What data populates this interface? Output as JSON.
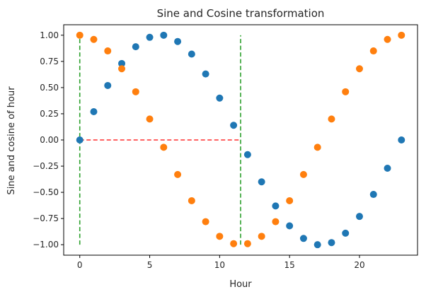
{
  "chart_data": {
    "type": "scatter",
    "title": "Sine and Cosine transformation",
    "xlabel": "Hour",
    "ylabel": "Sine and cosine of hour",
    "xlim": [
      -1.15,
      24.15
    ],
    "ylim": [
      -1.1,
      1.1
    ],
    "xticks": [
      0,
      5,
      10,
      15,
      20
    ],
    "xtick_labels": [
      "0",
      "5",
      "10",
      "15",
      "20"
    ],
    "yticks": [
      1.0,
      0.75,
      0.5,
      0.25,
      0.0,
      -0.25,
      -0.5,
      -0.75,
      -1.0
    ],
    "ytick_labels": [
      "1.00",
      "0.75",
      "0.50",
      "0.25",
      "0.00",
      "−0.25",
      "−0.50",
      "−0.75",
      "−1.00"
    ],
    "grid": false,
    "x": [
      0,
      1,
      2,
      3,
      4,
      5,
      6,
      7,
      8,
      9,
      10,
      11,
      12,
      13,
      14,
      15,
      16,
      17,
      18,
      19,
      20,
      21,
      22,
      23
    ],
    "series": [
      {
        "color": "#1f77b4",
        "values": [
          0.0,
          0.27,
          0.52,
          0.73,
          0.89,
          0.98,
          1.0,
          0.94,
          0.82,
          0.63,
          0.4,
          0.14,
          -0.14,
          -0.4,
          -0.63,
          -0.82,
          -0.94,
          -1.0,
          -0.98,
          -0.89,
          -0.73,
          -0.52,
          -0.27,
          0.0
        ]
      },
      {
        "color": "#ff7f0e",
        "values": [
          1.0,
          0.96,
          0.85,
          0.68,
          0.46,
          0.2,
          -0.07,
          -0.33,
          -0.58,
          -0.78,
          -0.92,
          -0.99,
          -0.99,
          -0.92,
          -0.78,
          -0.58,
          -0.33,
          -0.07,
          0.2,
          0.46,
          0.68,
          0.85,
          0.96,
          1.0
        ]
      }
    ],
    "guide_lines": [
      {
        "color": "#2ca02c",
        "dash": true,
        "x": [
          0,
          0
        ],
        "y": [
          -1.0,
          1.0
        ]
      },
      {
        "color": "#2ca02c",
        "dash": true,
        "x": [
          11.5,
          11.5
        ],
        "y": [
          -1.0,
          1.0
        ]
      },
      {
        "color": "#ff2d2d",
        "dash": true,
        "x": [
          0,
          11.5
        ],
        "y": [
          0.0,
          0.0
        ]
      }
    ]
  }
}
